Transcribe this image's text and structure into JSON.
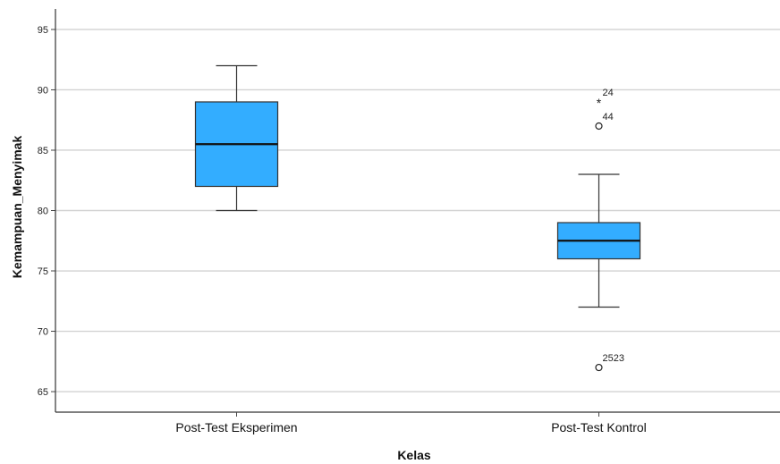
{
  "chart_data": {
    "type": "boxplot",
    "xlabel": "Kelas",
    "ylabel": "Kemampuan_Menyimak",
    "ylim": [
      63.3,
      96.7
    ],
    "yticks": [
      65,
      70,
      75,
      80,
      85,
      90,
      95
    ],
    "grid": true,
    "box_color": "#33adff",
    "categories": [
      "Post-Test Eksperimen",
      "Post-Test Kontrol"
    ],
    "boxes": [
      {
        "category": "Post-Test Eksperimen",
        "min": 80,
        "q1": 82,
        "median": 85.5,
        "q3": 89,
        "max": 92,
        "outliers": []
      },
      {
        "category": "Post-Test Kontrol",
        "min": 72,
        "q1": 76,
        "median": 77.5,
        "q3": 79,
        "max": 83,
        "outliers": [
          {
            "value": 89,
            "marker": "*",
            "label": "24"
          },
          {
            "value": 87,
            "marker": "o",
            "label": "44"
          },
          {
            "value": 67,
            "marker": "o",
            "label": "2523"
          }
        ]
      }
    ]
  }
}
